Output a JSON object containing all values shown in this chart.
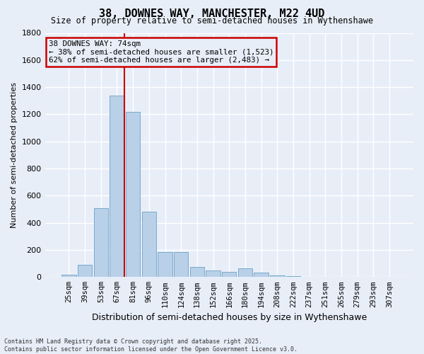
{
  "title": "38, DOWNES WAY, MANCHESTER, M22 4UD",
  "subtitle": "Size of property relative to semi-detached houses in Wythenshawe",
  "xlabel": "Distribution of semi-detached houses by size in Wythenshawe",
  "ylabel": "Number of semi-detached properties",
  "categories": [
    "25sqm",
    "39sqm",
    "53sqm",
    "67sqm",
    "81sqm",
    "96sqm",
    "110sqm",
    "124sqm",
    "138sqm",
    "152sqm",
    "166sqm",
    "180sqm",
    "194sqm",
    "208sqm",
    "222sqm",
    "237sqm",
    "251sqm",
    "265sqm",
    "279sqm",
    "293sqm",
    "307sqm"
  ],
  "values": [
    18,
    90,
    510,
    1340,
    1220,
    480,
    185,
    185,
    75,
    50,
    40,
    65,
    35,
    10,
    5,
    3,
    2,
    1,
    1,
    0,
    0
  ],
  "bar_color": "#b8d0e8",
  "bar_edge_color": "#7aaacb",
  "property_size_bin_index": 3,
  "annotation_title": "38 DOWNES WAY: 74sqm",
  "annotation_line1": "← 38% of semi-detached houses are smaller (1,523)",
  "annotation_line2": "62% of semi-detached houses are larger (2,483) →",
  "vline_color": "#cc0000",
  "annotation_box_edgecolor": "#cc0000",
  "ylim": [
    0,
    1800
  ],
  "yticks": [
    0,
    200,
    400,
    600,
    800,
    1000,
    1200,
    1400,
    1600,
    1800
  ],
  "background_color": "#e8eef8",
  "grid_color": "#ffffff",
  "footer_line1": "Contains HM Land Registry data © Crown copyright and database right 2025.",
  "footer_line2": "Contains public sector information licensed under the Open Government Licence v3.0."
}
